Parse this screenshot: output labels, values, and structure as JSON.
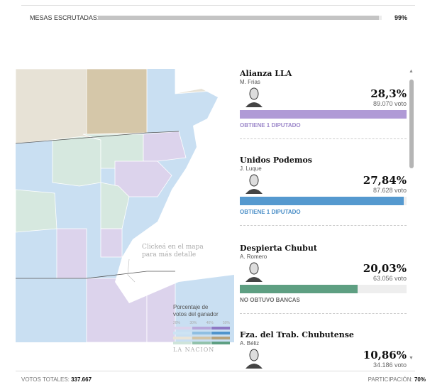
{
  "header": {
    "mesas_label": "MESAS ESCRUTADAS:",
    "mesas_pct": "99%",
    "mesas_value": 99
  },
  "map": {
    "hint_line1": "Clickeá en el mapa",
    "hint_line2": "para más detalle",
    "legend": {
      "title_line1": "Porcentaje de",
      "title_line2": "votos del ganador",
      "ticks": [
        "20%",
        "30%",
        "40%",
        "50%"
      ],
      "colors": [
        [
          "#dcd3ec",
          "#b7a6da",
          "#8e78c4"
        ],
        [
          "#cde3f3",
          "#8fbfe2",
          "#4f94cc"
        ],
        [
          "#e9e4d8",
          "#d2c4a6",
          "#b5a27c"
        ],
        [
          "#cfe4da",
          "#92c2ab",
          "#5e9f82"
        ]
      ],
      "logo": "LA NACION"
    }
  },
  "results": [
    {
      "party": "Alianza LLA",
      "candidate": "M. Frias",
      "pct": "28,3%",
      "votes": "89.070 voto",
      "pct_value": 28.3,
      "status": "OBTIENE 1 DIPUTADO",
      "color": "#b09ad6",
      "status_color": "#9b86c9"
    },
    {
      "party": "Unidos Podemos",
      "candidate": "J. Luque",
      "pct": "27,84%",
      "votes": "87.628 voto",
      "pct_value": 27.84,
      "status": "OBTIENE 1 DIPUTADO",
      "color": "#5599cf",
      "status_color": "#4a8ec7"
    },
    {
      "party": "Despierta Chubut",
      "candidate": "A. Romero",
      "pct": "20,03%",
      "votes": "63.056 voto",
      "pct_value": 20.03,
      "status": "NO OBTUVO BANCAS",
      "color": "#5e9f82",
      "status_color": "#6f6f6f"
    },
    {
      "party": "Fza. del Trab. Chubutense",
      "candidate": "A. Béliz",
      "pct": "10,86%",
      "votes": "34.186 voto",
      "pct_value": 10.86,
      "status": "",
      "color": "#b5a27c",
      "status_color": "#6f6f6f"
    }
  ],
  "footer": {
    "votos_label": "VOTOS TOTALES:",
    "votos_value": "337.667",
    "part_label": "PARTICIPACIÓN:",
    "part_value": "70%"
  }
}
